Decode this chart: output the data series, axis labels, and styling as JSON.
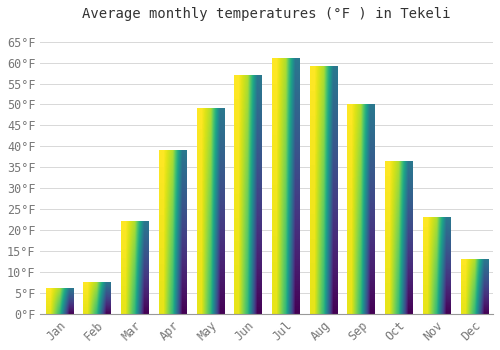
{
  "title": "Average monthly temperatures (°F ) in Tekeli",
  "months": [
    "Jan",
    "Feb",
    "Mar",
    "Apr",
    "May",
    "Jun",
    "Jul",
    "Aug",
    "Sep",
    "Oct",
    "Nov",
    "Dec"
  ],
  "values": [
    6,
    7.5,
    22,
    39,
    49,
    57,
    61,
    59,
    50,
    36.5,
    23,
    13
  ],
  "bar_color_bottom": "#F5A800",
  "bar_color_top": "#FFE066",
  "ylim": [
    0,
    68
  ],
  "yticks": [
    0,
    5,
    10,
    15,
    20,
    25,
    30,
    35,
    40,
    45,
    50,
    55,
    60,
    65
  ],
  "background_color": "#ffffff",
  "grid_color": "#d8d8d8",
  "title_fontsize": 10,
  "tick_fontsize": 8.5,
  "bar_width": 0.72
}
